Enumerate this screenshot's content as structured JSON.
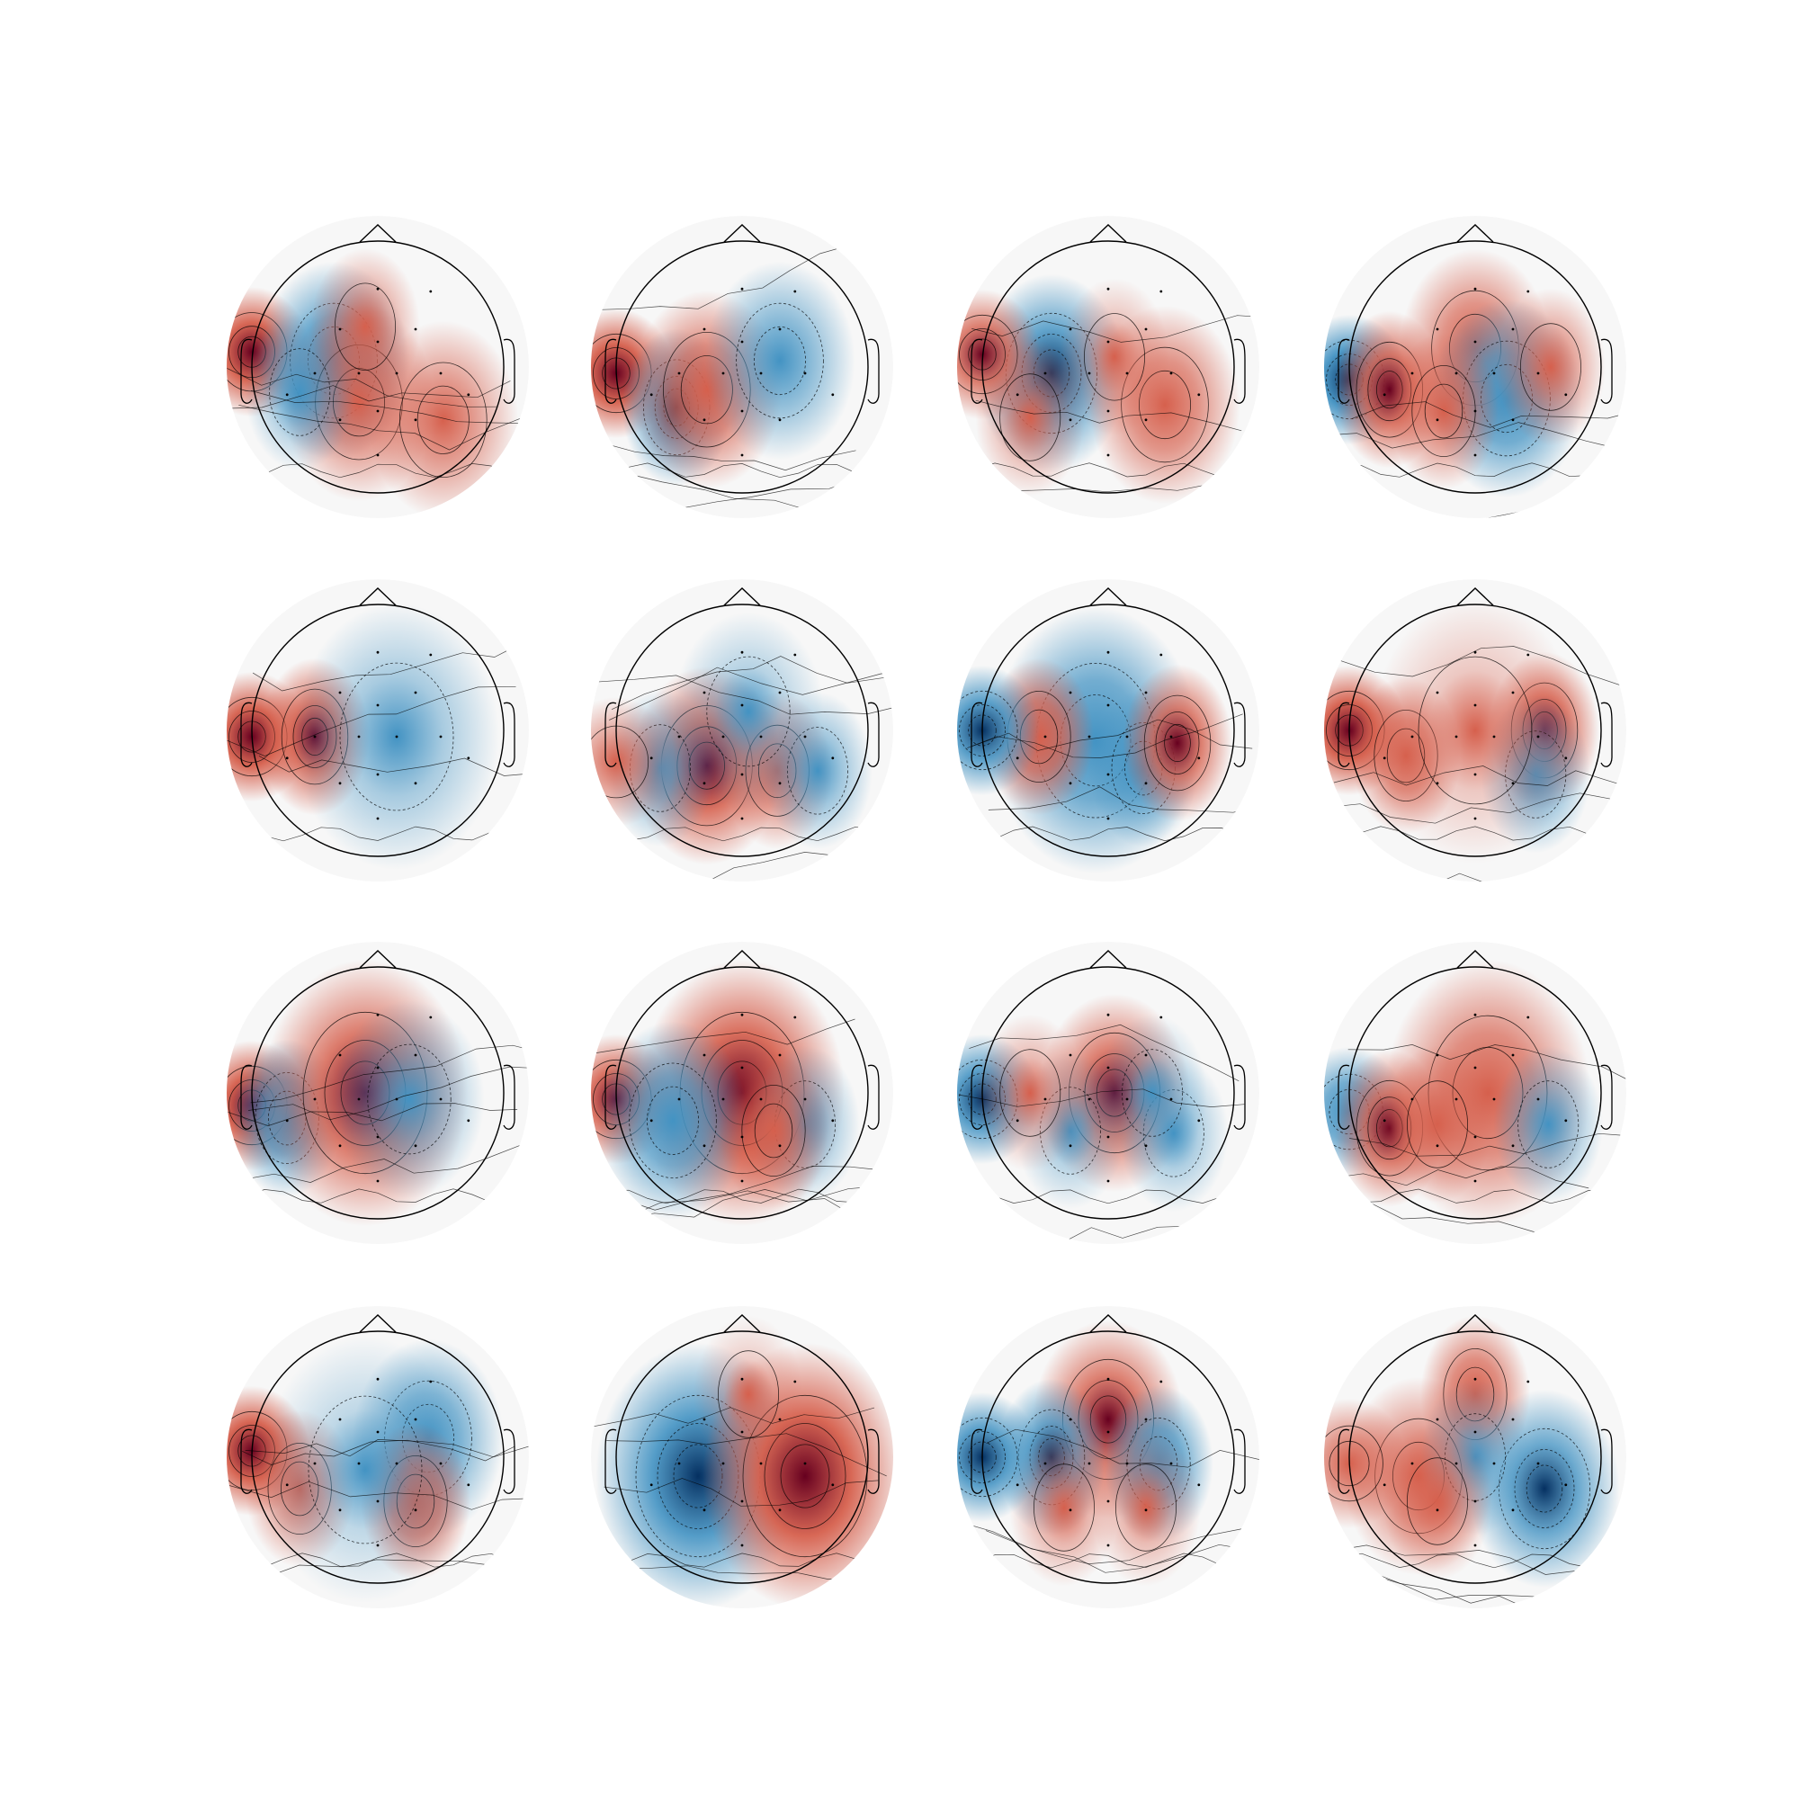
{
  "figure": {
    "rows": 4,
    "cols": 4,
    "colors": {
      "positive_strong": "#67001f",
      "positive": "#d6604d",
      "neutral": "#f7f7f7",
      "negative": "#4393c3",
      "negative_strong": "#053061",
      "outline": "#000000"
    },
    "maps": [
      {
        "name": "topomap-01",
        "blobs": [
          [
            -1.0,
            -0.12,
            1.0,
            "sp"
          ],
          [
            -0.35,
            -0.05,
            -0.75,
            "m"
          ],
          [
            -0.15,
            0.28,
            0.6,
            "m"
          ],
          [
            0.52,
            0.42,
            0.55,
            "m"
          ],
          [
            -0.62,
            0.2,
            -0.4,
            "s"
          ],
          [
            -0.1,
            -0.32,
            0.45,
            "s"
          ]
        ]
      },
      {
        "name": "topomap-02",
        "blobs": [
          [
            -1.0,
            0.05,
            1.0,
            "sp"
          ],
          [
            -0.52,
            0.32,
            -0.8,
            "s"
          ],
          [
            -0.28,
            0.18,
            0.7,
            "m"
          ],
          [
            0.3,
            -0.05,
            -0.55,
            "m"
          ]
        ]
      },
      {
        "name": "topomap-03",
        "blobs": [
          [
            -0.45,
            0.05,
            -0.85,
            "m"
          ],
          [
            0.45,
            0.3,
            0.65,
            "m"
          ],
          [
            -1.0,
            -0.1,
            0.8,
            "sp"
          ],
          [
            0.05,
            -0.08,
            0.3,
            "s"
          ],
          [
            -0.62,
            0.4,
            0.4,
            "s"
          ]
        ]
      },
      {
        "name": "topomap-04",
        "blobs": [
          [
            -1.0,
            0.1,
            -1.0,
            "sp"
          ],
          [
            -0.68,
            0.18,
            0.85,
            "s"
          ],
          [
            0.0,
            -0.15,
            0.65,
            "m"
          ],
          [
            0.25,
            0.25,
            -0.75,
            "m"
          ],
          [
            0.6,
            0.0,
            0.5,
            "s"
          ],
          [
            -0.25,
            0.35,
            0.55,
            "s"
          ]
        ]
      },
      {
        "name": "topomap-05",
        "blobs": [
          [
            -1.0,
            0.05,
            1.0,
            "sp"
          ],
          [
            -0.5,
            0.05,
            0.85,
            "s"
          ],
          [
            0.15,
            0.05,
            -0.4,
            "l"
          ]
        ]
      },
      {
        "name": "topomap-06",
        "blobs": [
          [
            -0.28,
            0.28,
            0.9,
            "m"
          ],
          [
            0.28,
            0.32,
            0.6,
            "s"
          ],
          [
            -0.65,
            0.3,
            -0.45,
            "s"
          ],
          [
            0.6,
            0.32,
            -0.45,
            "s"
          ],
          [
            0.05,
            -0.15,
            -0.3,
            "m"
          ],
          [
            -1.0,
            0.25,
            0.5,
            "sp"
          ]
        ]
      },
      {
        "name": "topomap-07",
        "blobs": [
          [
            -0.1,
            0.08,
            -0.75,
            "l"
          ],
          [
            0.28,
            0.3,
            -0.55,
            "s"
          ],
          [
            -0.55,
            0.05,
            0.75,
            "s"
          ],
          [
            0.55,
            0.1,
            0.8,
            "s"
          ],
          [
            -1.0,
            0.0,
            -0.9,
            "sp"
          ]
        ]
      },
      {
        "name": "topomap-08",
        "blobs": [
          [
            -1.0,
            0.0,
            1.0,
            "sp"
          ],
          [
            -0.55,
            0.2,
            0.7,
            "s"
          ],
          [
            0.55,
            0.0,
            0.85,
            "s"
          ],
          [
            0.48,
            0.35,
            -0.5,
            "s"
          ],
          [
            0.0,
            0.0,
            0.25,
            "l"
          ]
        ]
      },
      {
        "name": "topomap-09",
        "blobs": [
          [
            -1.0,
            0.1,
            1.0,
            "sp"
          ],
          [
            -0.72,
            0.2,
            -0.75,
            "s"
          ],
          [
            -0.1,
            0.0,
            0.85,
            "l"
          ],
          [
            0.25,
            0.05,
            -0.45,
            "m"
          ]
        ]
      },
      {
        "name": "topomap-10",
        "blobs": [
          [
            -1.0,
            0.05,
            0.9,
            "sp"
          ],
          [
            0.0,
            0.0,
            0.95,
            "l"
          ],
          [
            -0.55,
            0.22,
            -0.7,
            "m"
          ],
          [
            0.5,
            0.25,
            -0.4,
            "s"
          ],
          [
            0.25,
            0.3,
            0.55,
            "s"
          ]
        ]
      },
      {
        "name": "topomap-11",
        "blobs": [
          [
            -1.0,
            0.05,
            -0.9,
            "sp"
          ],
          [
            0.05,
            0.0,
            0.8,
            "m"
          ],
          [
            -0.3,
            0.3,
            -0.3,
            "s"
          ],
          [
            0.52,
            0.32,
            -0.35,
            "s"
          ],
          [
            -0.62,
            0.0,
            0.35,
            "s"
          ],
          [
            0.35,
            0.0,
            -0.25,
            "s"
          ]
        ]
      },
      {
        "name": "topomap-12",
        "blobs": [
          [
            -1.0,
            0.15,
            -0.75,
            "sp"
          ],
          [
            -0.68,
            0.28,
            0.8,
            "s"
          ],
          [
            0.1,
            0.0,
            0.7,
            "l"
          ],
          [
            -0.3,
            0.25,
            0.45,
            "s"
          ],
          [
            0.58,
            0.25,
            -0.45,
            "s"
          ]
        ]
      },
      {
        "name": "topomap-13",
        "blobs": [
          [
            -1.0,
            -0.05,
            1.0,
            "sp"
          ],
          [
            -0.62,
            0.25,
            0.55,
            "s"
          ],
          [
            0.4,
            -0.15,
            -0.65,
            "m"
          ],
          [
            0.3,
            0.35,
            0.75,
            "s"
          ],
          [
            -0.1,
            0.1,
            -0.25,
            "l"
          ]
        ]
      },
      {
        "name": "topomap-14",
        "blobs": [
          [
            -0.35,
            0.15,
            -0.95,
            "l"
          ],
          [
            0.5,
            0.15,
            1.0,
            "l"
          ],
          [
            0.05,
            -0.5,
            0.2,
            "s"
          ]
        ]
      },
      {
        "name": "topomap-15",
        "blobs": [
          [
            0.0,
            -0.3,
            0.8,
            "m"
          ],
          [
            -0.45,
            0.0,
            -0.8,
            "s"
          ],
          [
            0.4,
            0.05,
            -0.75,
            "s"
          ],
          [
            -0.35,
            0.4,
            0.4,
            "s"
          ],
          [
            0.3,
            0.4,
            0.35,
            "s"
          ],
          [
            -1.0,
            0.0,
            -0.9,
            "sp"
          ]
        ]
      },
      {
        "name": "topomap-16",
        "blobs": [
          [
            0.0,
            -0.5,
            0.7,
            "s"
          ],
          [
            -0.45,
            0.15,
            0.6,
            "m"
          ],
          [
            0.55,
            0.25,
            -0.8,
            "m"
          ],
          [
            0.0,
            0.0,
            -0.35,
            "s"
          ],
          [
            -0.3,
            0.35,
            0.4,
            "s"
          ],
          [
            -1.0,
            0.05,
            0.6,
            "sp"
          ]
        ]
      }
    ]
  }
}
